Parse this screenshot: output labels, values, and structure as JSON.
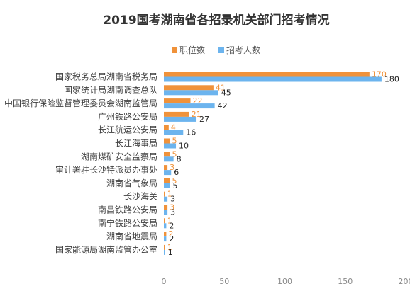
{
  "chart_data": {
    "type": "bar",
    "orientation": "horizontal",
    "title": "2019国考湖南省各招录机关部门招考情况",
    "categories": [
      "国家税务总局湖南省税务局",
      "国家统计局湖南调查总队",
      "中国银行保险监督管理委员会湖南监管局",
      "广州铁路公安局",
      "长江航运公安局",
      "长江海事局",
      "湖南煤矿安全监察局",
      "审计署驻长沙特派员办事处",
      "湖南省气象局",
      "长沙海关",
      "南昌铁路公安局",
      "南宁铁路公安局",
      "湖南省地震局",
      "国家能源局湖南监管办公室"
    ],
    "series": [
      {
        "name": "职位数",
        "color": "#F0923A",
        "values": [
          170,
          41,
          22,
          21,
          4,
          5,
          5,
          3,
          5,
          1,
          3,
          1,
          2,
          1
        ]
      },
      {
        "name": "招考人数",
        "color": "#6CB4EE",
        "values": [
          180,
          45,
          42,
          27,
          16,
          10,
          8,
          6,
          5,
          3,
          3,
          2,
          2,
          1
        ]
      }
    ],
    "xlim": [
      0,
      200
    ],
    "xticks": [
      0,
      50,
      100,
      150,
      200
    ],
    "legend_position": "top",
    "grid": false
  }
}
